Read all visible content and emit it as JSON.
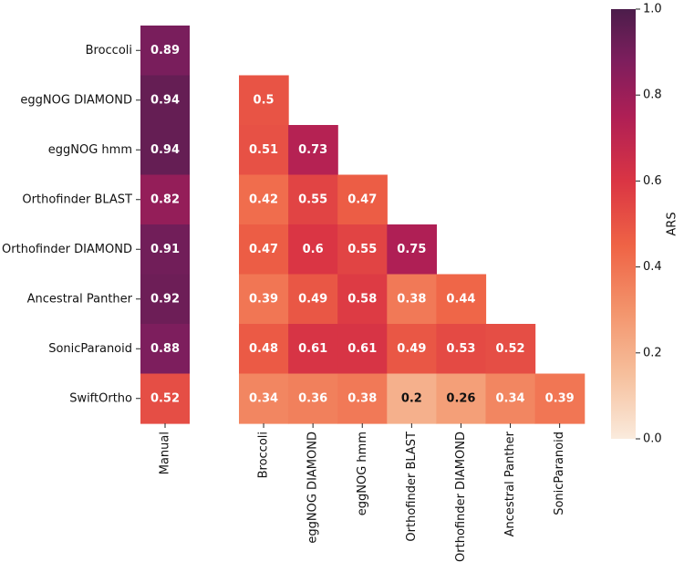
{
  "chart_data": {
    "type": "heatmap",
    "rows": [
      "Broccoli",
      "eggNOG DIAMOND",
      "eggNOG hmm",
      "Orthofinder BLAST",
      "Orthofinder DIAMOND",
      "Ancestral Panther",
      "SonicParanoid",
      "SwiftOrtho"
    ],
    "manual_column_label": "Manual",
    "manual_values": [
      0.89,
      0.94,
      0.94,
      0.82,
      0.91,
      0.92,
      0.88,
      0.52
    ],
    "columns": [
      "Broccoli",
      "eggNOG DIAMOND",
      "eggNOG hmm",
      "Orthofinder BLAST",
      "Orthofinder DIAMOND",
      "Ancestral Panther",
      "SonicParanoid"
    ],
    "matrix": [
      [
        null,
        null,
        null,
        null,
        null,
        null,
        null
      ],
      [
        0.5,
        null,
        null,
        null,
        null,
        null,
        null
      ],
      [
        0.51,
        0.73,
        null,
        null,
        null,
        null,
        null
      ],
      [
        0.42,
        0.55,
        0.47,
        null,
        null,
        null,
        null
      ],
      [
        0.47,
        0.6,
        0.55,
        0.75,
        null,
        null,
        null
      ],
      [
        0.39,
        0.49,
        0.58,
        0.38,
        0.44,
        null,
        null
      ],
      [
        0.48,
        0.61,
        0.61,
        0.49,
        0.53,
        0.52,
        null
      ],
      [
        0.34,
        0.36,
        0.38,
        0.2,
        0.26,
        0.34,
        0.39
      ]
    ],
    "colorbar": {
      "label": "ARS",
      "range": [
        0.0,
        1.0
      ],
      "ticks": [
        "0.0",
        "0.2",
        "0.4",
        "0.6",
        "0.8",
        "1.0"
      ],
      "colormap": "rocket_r"
    }
  }
}
